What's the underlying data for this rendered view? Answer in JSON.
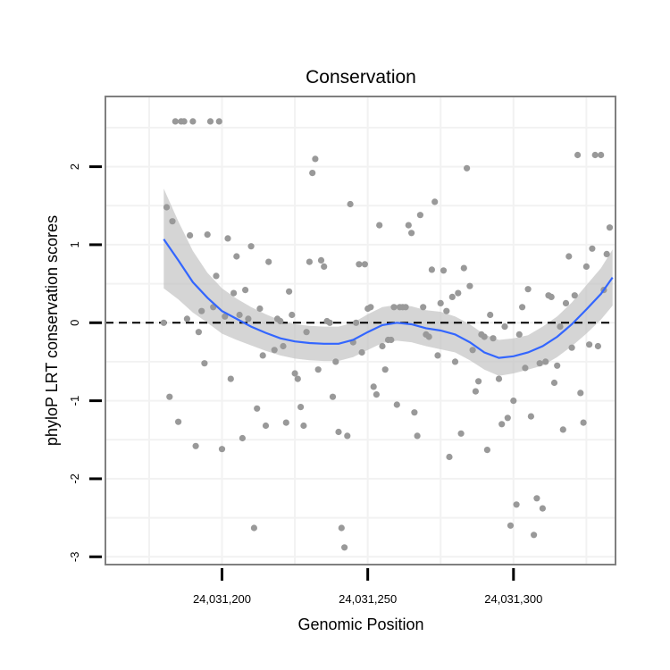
{
  "chart_data": {
    "type": "scatter",
    "title": "Conservation",
    "xlabel": "Genomic Position",
    "ylabel": "phyloP LRT conservation scores",
    "xlim": [
      24031160,
      24031335
    ],
    "ylim": [
      -3.1,
      2.9
    ],
    "x_ticks": [
      24031200,
      24031250,
      24031300
    ],
    "x_tick_labels": [
      "24,031,200",
      "24,031,250",
      "24,031,300"
    ],
    "y_ticks": [
      -3,
      -2,
      -1,
      0,
      1,
      2
    ],
    "y_tick_labels": [
      "-3",
      "-2",
      "-1",
      "0",
      "1",
      "2"
    ],
    "reference_line": 0,
    "colors": {
      "points": "#999999",
      "smooth": "#3366FF",
      "ribbon": "#BEBEBE",
      "panel_border": "#7F7F7F",
      "grid": "#F2F2F2"
    },
    "points": [
      [
        24031180,
        0.0
      ],
      [
        24031181,
        1.48
      ],
      [
        24031182,
        -0.95
      ],
      [
        24031183,
        1.3
      ],
      [
        24031184,
        2.58
      ],
      [
        24031185,
        -1.27
      ],
      [
        24031186,
        2.58
      ],
      [
        24031187,
        2.58
      ],
      [
        24031188,
        0.05
      ],
      [
        24031189,
        1.12
      ],
      [
        24031190,
        2.58
      ],
      [
        24031191,
        -1.58
      ],
      [
        24031192,
        -0.12
      ],
      [
        24031193,
        0.15
      ],
      [
        24031194,
        -0.52
      ],
      [
        24031195,
        1.13
      ],
      [
        24031196,
        2.58
      ],
      [
        24031197,
        0.2
      ],
      [
        24031198,
        0.6
      ],
      [
        24031199,
        2.58
      ],
      [
        24031200,
        -1.62
      ],
      [
        24031201,
        0.08
      ],
      [
        24031202,
        1.08
      ],
      [
        24031203,
        -0.72
      ],
      [
        24031204,
        0.38
      ],
      [
        24031205,
        0.85
      ],
      [
        24031206,
        0.1
      ],
      [
        24031207,
        -1.48
      ],
      [
        24031208,
        0.42
      ],
      [
        24031209,
        0.05
      ],
      [
        24031210,
        0.98
      ],
      [
        24031211,
        -2.63
      ],
      [
        24031212,
        -1.1
      ],
      [
        24031213,
        0.18
      ],
      [
        24031214,
        -0.42
      ],
      [
        24031215,
        -1.32
      ],
      [
        24031216,
        0.78
      ],
      [
        24031218,
        -0.35
      ],
      [
        24031219,
        0.05
      ],
      [
        24031220,
        0.02
      ],
      [
        24031221,
        -0.3
      ],
      [
        24031222,
        -1.28
      ],
      [
        24031223,
        0.4
      ],
      [
        24031224,
        0.1
      ],
      [
        24031225,
        -0.65
      ],
      [
        24031226,
        -0.72
      ],
      [
        24031227,
        -1.08
      ],
      [
        24031228,
        -1.32
      ],
      [
        24031229,
        -0.12
      ],
      [
        24031230,
        0.78
      ],
      [
        24031231,
        1.92
      ],
      [
        24031232,
        2.1
      ],
      [
        24031233,
        -0.6
      ],
      [
        24031234,
        0.8
      ],
      [
        24031235,
        0.72
      ],
      [
        24031236,
        0.02
      ],
      [
        24031237,
        0.0
      ],
      [
        24031238,
        -0.95
      ],
      [
        24031239,
        -0.5
      ],
      [
        24031240,
        -1.4
      ],
      [
        24031241,
        -2.63
      ],
      [
        24031242,
        -2.88
      ],
      [
        24031243,
        -1.45
      ],
      [
        24031244,
        1.52
      ],
      [
        24031245,
        -0.25
      ],
      [
        24031246,
        0.0
      ],
      [
        24031247,
        0.75
      ],
      [
        24031248,
        -0.38
      ],
      [
        24031249,
        0.75
      ],
      [
        24031250,
        0.18
      ],
      [
        24031251,
        0.2
      ],
      [
        24031252,
        -0.82
      ],
      [
        24031253,
        -0.92
      ],
      [
        24031254,
        1.25
      ],
      [
        24031255,
        -0.3
      ],
      [
        24031256,
        -0.6
      ],
      [
        24031257,
        -0.22
      ],
      [
        24031258,
        -0.22
      ],
      [
        24031259,
        0.2
      ],
      [
        24031260,
        -1.05
      ],
      [
        24031261,
        0.2
      ],
      [
        24031262,
        0.2
      ],
      [
        24031263,
        0.2
      ],
      [
        24031264,
        1.25
      ],
      [
        24031265,
        1.15
      ],
      [
        24031266,
        -1.15
      ],
      [
        24031267,
        -1.45
      ],
      [
        24031268,
        1.38
      ],
      [
        24031269,
        0.2
      ],
      [
        24031270,
        -0.15
      ],
      [
        24031271,
        -0.18
      ],
      [
        24031272,
        0.68
      ],
      [
        24031273,
        1.55
      ],
      [
        24031274,
        -0.42
      ],
      [
        24031275,
        0.25
      ],
      [
        24031276,
        0.67
      ],
      [
        24031277,
        0.15
      ],
      [
        24031278,
        -1.72
      ],
      [
        24031279,
        0.33
      ],
      [
        24031280,
        -0.5
      ],
      [
        24031281,
        0.38
      ],
      [
        24031282,
        -1.42
      ],
      [
        24031283,
        0.7
      ],
      [
        24031284,
        1.98
      ],
      [
        24031285,
        0.47
      ],
      [
        24031286,
        -0.35
      ],
      [
        24031287,
        -0.88
      ],
      [
        24031288,
        -0.75
      ],
      [
        24031289,
        -0.15
      ],
      [
        24031290,
        -0.18
      ],
      [
        24031291,
        -1.63
      ],
      [
        24031292,
        0.1
      ],
      [
        24031293,
        -0.2
      ],
      [
        24031295,
        -0.72
      ],
      [
        24031296,
        -1.3
      ],
      [
        24031297,
        -0.05
      ],
      [
        24031298,
        -1.22
      ],
      [
        24031299,
        -2.6
      ],
      [
        24031300,
        -1.0
      ],
      [
        24031301,
        -2.33
      ],
      [
        24031302,
        -0.15
      ],
      [
        24031303,
        0.2
      ],
      [
        24031304,
        -0.58
      ],
      [
        24031305,
        0.43
      ],
      [
        24031306,
        -1.2
      ],
      [
        24031307,
        -2.72
      ],
      [
        24031308,
        -2.25
      ],
      [
        24031309,
        -0.52
      ],
      [
        24031310,
        -2.38
      ],
      [
        24031311,
        -0.5
      ],
      [
        24031312,
        0.35
      ],
      [
        24031313,
        0.33
      ],
      [
        24031314,
        -0.77
      ],
      [
        24031315,
        -0.55
      ],
      [
        24031316,
        -0.05
      ],
      [
        24031317,
        -1.37
      ],
      [
        24031318,
        0.25
      ],
      [
        24031319,
        0.85
      ],
      [
        24031320,
        -0.32
      ],
      [
        24031321,
        0.35
      ],
      [
        24031322,
        2.15
      ],
      [
        24031323,
        -0.9
      ],
      [
        24031324,
        -1.28
      ],
      [
        24031325,
        0.72
      ],
      [
        24031326,
        -0.28
      ],
      [
        24031327,
        0.95
      ],
      [
        24031328,
        2.15
      ],
      [
        24031329,
        -0.3
      ],
      [
        24031330,
        2.15
      ],
      [
        24031331,
        0.42
      ],
      [
        24031332,
        0.88
      ],
      [
        24031333,
        1.22
      ]
    ],
    "smooth": [
      [
        24031180,
        1.07
      ],
      [
        24031185,
        0.8
      ],
      [
        24031190,
        0.52
      ],
      [
        24031195,
        0.32
      ],
      [
        24031200,
        0.15
      ],
      [
        24031205,
        0.05
      ],
      [
        24031210,
        -0.05
      ],
      [
        24031215,
        -0.13
      ],
      [
        24031220,
        -0.2
      ],
      [
        24031225,
        -0.24
      ],
      [
        24031230,
        -0.26
      ],
      [
        24031235,
        -0.27
      ],
      [
        24031240,
        -0.27
      ],
      [
        24031245,
        -0.22
      ],
      [
        24031250,
        -0.12
      ],
      [
        24031255,
        -0.03
      ],
      [
        24031260,
        0.0
      ],
      [
        24031265,
        -0.02
      ],
      [
        24031270,
        -0.07
      ],
      [
        24031275,
        -0.1
      ],
      [
        24031280,
        -0.15
      ],
      [
        24031285,
        -0.25
      ],
      [
        24031290,
        -0.38
      ],
      [
        24031295,
        -0.45
      ],
      [
        24031300,
        -0.43
      ],
      [
        24031305,
        -0.38
      ],
      [
        24031310,
        -0.3
      ],
      [
        24031315,
        -0.18
      ],
      [
        24031320,
        -0.02
      ],
      [
        24031325,
        0.17
      ],
      [
        24031330,
        0.37
      ],
      [
        24031334,
        0.58
      ]
    ],
    "smooth_lower": [
      [
        24031180,
        0.44
      ],
      [
        24031185,
        0.3
      ],
      [
        24031190,
        0.13
      ],
      [
        24031195,
        0.0
      ],
      [
        24031200,
        -0.14
      ],
      [
        24031205,
        -0.22
      ],
      [
        24031210,
        -0.29
      ],
      [
        24031215,
        -0.36
      ],
      [
        24031220,
        -0.42
      ],
      [
        24031225,
        -0.46
      ],
      [
        24031230,
        -0.48
      ],
      [
        24031235,
        -0.49
      ],
      [
        24031240,
        -0.49
      ],
      [
        24031245,
        -0.44
      ],
      [
        24031250,
        -0.35
      ],
      [
        24031255,
        -0.26
      ],
      [
        24031260,
        -0.23
      ],
      [
        24031265,
        -0.25
      ],
      [
        24031270,
        -0.3
      ],
      [
        24031275,
        -0.34
      ],
      [
        24031280,
        -0.38
      ],
      [
        24031285,
        -0.48
      ],
      [
        24031290,
        -0.6
      ],
      [
        24031295,
        -0.68
      ],
      [
        24031300,
        -0.65
      ],
      [
        24031305,
        -0.6
      ],
      [
        24031310,
        -0.55
      ],
      [
        24031315,
        -0.44
      ],
      [
        24031320,
        -0.3
      ],
      [
        24031325,
        -0.14
      ],
      [
        24031330,
        0.04
      ],
      [
        24031334,
        0.22
      ]
    ],
    "smooth_upper": [
      [
        24031180,
        1.72
      ],
      [
        24031185,
        1.3
      ],
      [
        24031190,
        0.92
      ],
      [
        24031195,
        0.64
      ],
      [
        24031200,
        0.44
      ],
      [
        24031205,
        0.31
      ],
      [
        24031210,
        0.2
      ],
      [
        24031215,
        0.11
      ],
      [
        24031220,
        0.03
      ],
      [
        24031225,
        -0.02
      ],
      [
        24031230,
        -0.04
      ],
      [
        24031235,
        -0.05
      ],
      [
        24031240,
        -0.05
      ],
      [
        24031245,
        0.0
      ],
      [
        24031250,
        0.11
      ],
      [
        24031255,
        0.2
      ],
      [
        24031260,
        0.23
      ],
      [
        24031265,
        0.21
      ],
      [
        24031270,
        0.16
      ],
      [
        24031275,
        0.14
      ],
      [
        24031280,
        0.08
      ],
      [
        24031285,
        -0.02
      ],
      [
        24031290,
        -0.15
      ],
      [
        24031295,
        -0.22
      ],
      [
        24031300,
        -0.2
      ],
      [
        24031305,
        -0.16
      ],
      [
        24031310,
        -0.05
      ],
      [
        24031315,
        0.08
      ],
      [
        24031320,
        0.26
      ],
      [
        24031325,
        0.48
      ],
      [
        24031330,
        0.7
      ],
      [
        24031334,
        0.94
      ]
    ]
  }
}
